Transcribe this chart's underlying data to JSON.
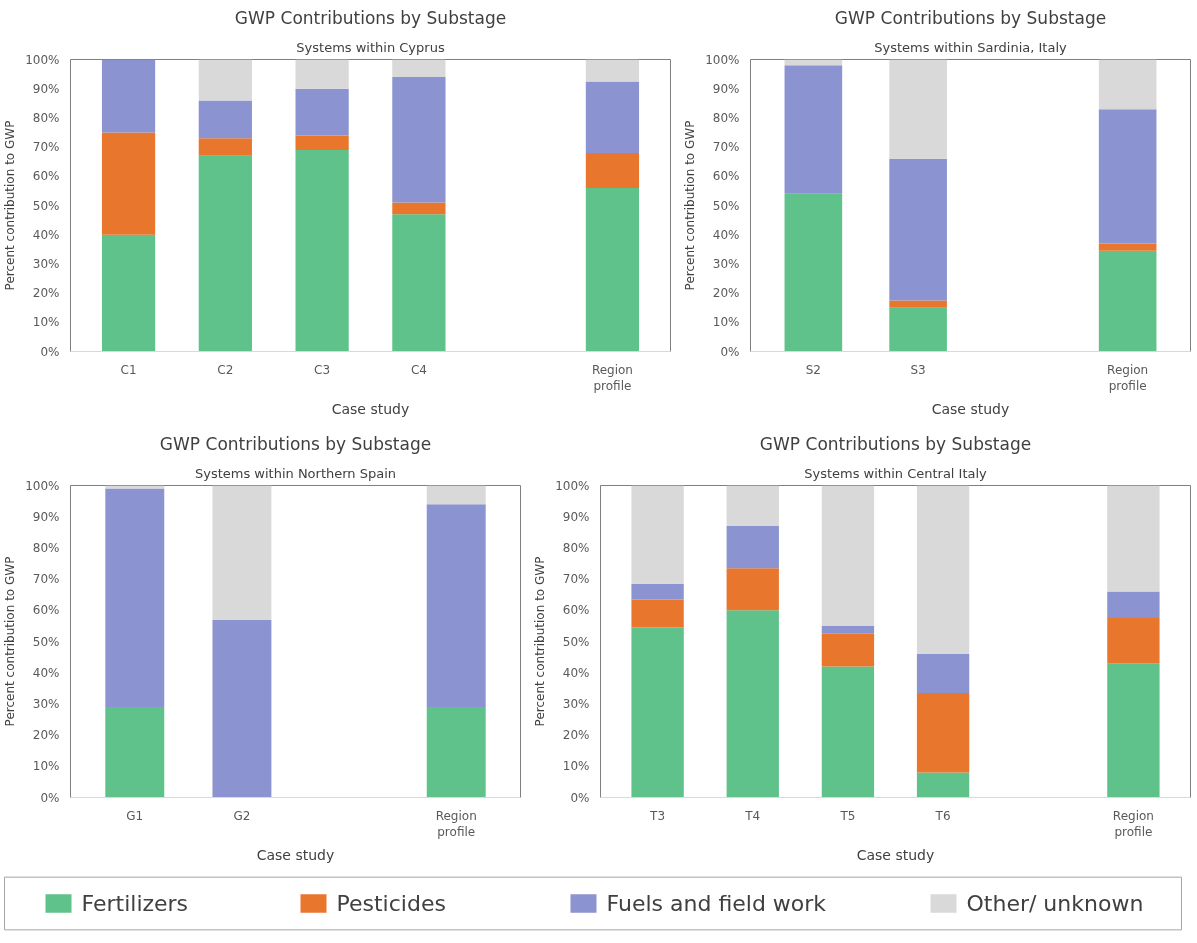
{
  "chart_data": [
    {
      "type": "bar",
      "stacked": true,
      "title": "GWP Contributions by Substage",
      "subtitle": "Systems within Cyprus",
      "xlabel": "Case study",
      "ylabel": "Percent contribution to GWP",
      "categories": [
        "C1",
        "C2",
        "C3",
        "C4",
        null,
        "Region profile"
      ],
      "ylim": [
        0,
        100
      ],
      "yticks": [
        {
          "value": 0,
          "label": "0%"
        },
        {
          "value": 10,
          "label": "10%"
        },
        {
          "value": 20,
          "label": "20%"
        },
        {
          "value": 30,
          "label": "30%"
        },
        {
          "value": 40,
          "label": "40%"
        },
        {
          "value": 50,
          "label": "50%"
        },
        {
          "value": 60,
          "label": "60%"
        },
        {
          "value": 70,
          "label": "70%"
        },
        {
          "value": 80,
          "label": "80%"
        },
        {
          "value": 90,
          "label": "90%"
        },
        {
          "value": 100,
          "label": "100%"
        }
      ],
      "grid": false,
      "legend": "bottom",
      "series": [
        {
          "name": "Fertilizers",
          "color": "#5ec28a",
          "values": [
            40,
            67,
            69,
            47,
            null,
            56
          ]
        },
        {
          "name": "Pesticides",
          "color": "#e8762d",
          "values": [
            35,
            6,
            5,
            4,
            null,
            12
          ]
        },
        {
          "name": "Fuels and field work",
          "color": "#8b93d0",
          "values": [
            25,
            13,
            16,
            43,
            null,
            24.5
          ]
        },
        {
          "name": "Other/ unknown",
          "color": "#d9d9d9",
          "values": [
            0,
            14,
            10,
            6,
            null,
            7.5
          ]
        }
      ]
    },
    {
      "type": "bar",
      "stacked": true,
      "title": "GWP Contributions by Substage",
      "subtitle": "Systems within Sardinia, Italy",
      "xlabel": "Case study",
      "ylabel": "Percent contribution to GWP",
      "categories": [
        "S2",
        "S3",
        null,
        "Region profile"
      ],
      "ylim": [
        0,
        100
      ],
      "yticks": [
        {
          "value": 0,
          "label": "0%"
        },
        {
          "value": 10,
          "label": "10%"
        },
        {
          "value": 20,
          "label": "20%"
        },
        {
          "value": 30,
          "label": "30%"
        },
        {
          "value": 40,
          "label": "40%"
        },
        {
          "value": 50,
          "label": "50%"
        },
        {
          "value": 60,
          "label": "60%"
        },
        {
          "value": 70,
          "label": "70%"
        },
        {
          "value": 80,
          "label": "80%"
        },
        {
          "value": 90,
          "label": "90%"
        },
        {
          "value": 100,
          "label": "100%"
        }
      ],
      "grid": false,
      "legend": false,
      "series": [
        {
          "color": "#5ec28a",
          "values": [
            54,
            15,
            null,
            34.5
          ]
        },
        {
          "color": "#e8762d",
          "values": [
            0,
            2.5,
            null,
            2.5
          ]
        },
        {
          "color": "#8b93d0",
          "values": [
            44,
            48.5,
            null,
            46
          ]
        },
        {
          "color": "#d9d9d9",
          "values": [
            2,
            34,
            null,
            17
          ]
        }
      ]
    },
    {
      "type": "bar",
      "stacked": true,
      "title": "GWP Contributions by Substage",
      "subtitle": "Systems within Northern Spain",
      "xlabel": "Case study",
      "ylabel": "Percent contribution to GWP",
      "categories": [
        "G1",
        "G2",
        null,
        "Region profile"
      ],
      "ylim": [
        0,
        100
      ],
      "yticks": [
        {
          "value": 0,
          "label": "0%"
        },
        {
          "value": 10,
          "label": "10%"
        },
        {
          "value": 20,
          "label": "20%"
        },
        {
          "value": 30,
          "label": "30%"
        },
        {
          "value": 40,
          "label": "40%"
        },
        {
          "value": 50,
          "label": "50%"
        },
        {
          "value": 60,
          "label": "60%"
        },
        {
          "value": 70,
          "label": "70%"
        },
        {
          "value": 80,
          "label": "80%"
        },
        {
          "value": 90,
          "label": "90%"
        },
        {
          "value": 100,
          "label": "100%"
        }
      ],
      "grid": false,
      "legend": false,
      "series": [
        {
          "color": "#5ec28a",
          "values": [
            29,
            0,
            null,
            29
          ]
        },
        {
          "color": "#e8762d",
          "values": [
            0,
            0,
            null,
            0
          ]
        },
        {
          "color": "#8b93d0",
          "values": [
            70,
            57,
            null,
            65
          ]
        },
        {
          "color": "#d9d9d9",
          "values": [
            1,
            43,
            null,
            6
          ]
        }
      ]
    },
    {
      "type": "bar",
      "stacked": true,
      "title": "GWP Contributions by Substage",
      "subtitle": "Systems within Central Italy",
      "xlabel": "Case study",
      "ylabel": "Percent contribution to GWP",
      "categories": [
        "T3",
        "T4",
        "T5",
        "T6",
        null,
        "Region profile"
      ],
      "ylim": [
        0,
        100
      ],
      "yticks": [
        {
          "value": 0,
          "label": "0%"
        },
        {
          "value": 10,
          "label": "10%"
        },
        {
          "value": 20,
          "label": "20%"
        },
        {
          "value": 30,
          "label": "30%"
        },
        {
          "value": 40,
          "label": "40%"
        },
        {
          "value": 50,
          "label": "50%"
        },
        {
          "value": 60,
          "label": "60%"
        },
        {
          "value": 70,
          "label": "70%"
        },
        {
          "value": 80,
          "label": "80%"
        },
        {
          "value": 90,
          "label": "90%"
        },
        {
          "value": 100,
          "label": "100%"
        }
      ],
      "grid": false,
      "legend": false,
      "series": [
        {
          "color": "#5ec28a",
          "values": [
            54.5,
            60,
            42,
            8,
            null,
            43
          ]
        },
        {
          "color": "#e8762d",
          "values": [
            9,
            13.5,
            10.5,
            25.5,
            null,
            14.5
          ]
        },
        {
          "color": "#8b93d0",
          "values": [
            5,
            13.5,
            2.5,
            12.5,
            null,
            8.5
          ]
        },
        {
          "color": "#d9d9d9",
          "values": [
            31.5,
            13,
            45,
            54,
            null,
            34
          ]
        }
      ]
    }
  ]
}
